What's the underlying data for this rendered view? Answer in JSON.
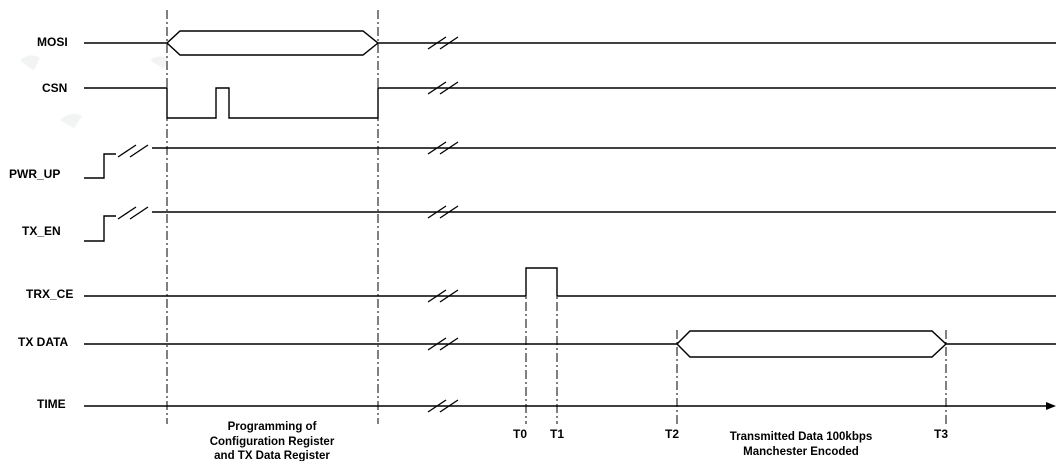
{
  "signals": {
    "mosi": "MOSI",
    "csn": "CSN",
    "pwr_up": "PWR_UP",
    "tx_en": "TX_EN",
    "trx_ce": "TRX_CE",
    "tx_data": "TX DATA",
    "time": "TIME"
  },
  "markers": {
    "t0": "T0",
    "t1": "T1",
    "t2": "T2",
    "t3": "T3"
  },
  "notes": {
    "programming": [
      "Programming of",
      "Configuration Register",
      "and TX Data Register"
    ],
    "transmitted": [
      "Transmitted Data 100kbps",
      "Manchester Encoded"
    ]
  }
}
